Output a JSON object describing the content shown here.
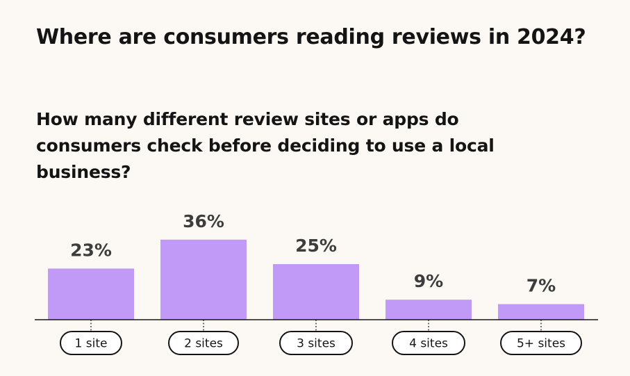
{
  "chart_data": {
    "type": "bar",
    "title": "Where are consumers reading reviews in 2024?",
    "subtitle": "How many different review sites or apps do consumers check before deciding to use a local business?",
    "categories": [
      "1 site",
      "2 sites",
      "3 sites",
      "4 sites",
      "5+ sites"
    ],
    "values": [
      23,
      36,
      25,
      9,
      7
    ],
    "value_labels": [
      "23%",
      "36%",
      "25%",
      "9%",
      "7%"
    ],
    "ylim": [
      0,
      40
    ],
    "xlabel": "",
    "ylabel": "",
    "grid": false
  },
  "colors": {
    "bar": "#c19af8",
    "background": "#fcf9f4",
    "text": "#141414",
    "value_text": "#3d3d3d"
  }
}
